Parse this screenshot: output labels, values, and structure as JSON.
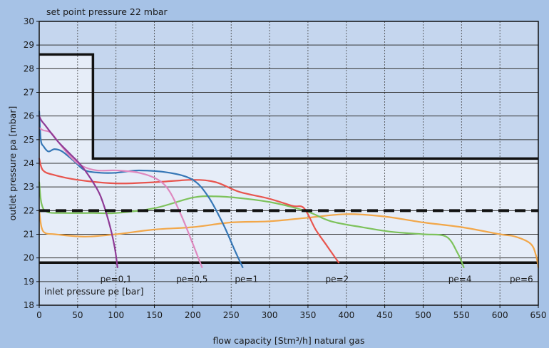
{
  "chart_data": {
    "type": "line",
    "title": "set point pressure 22 mbar",
    "xlabel": "flow capacity [Stm³/h] natural gas",
    "ylabel": "outlet pressure pa [mbar]",
    "inner_label": "inlet pressure pe [bar]",
    "xlim": [
      0,
      650
    ],
    "ylim": [
      18,
      30
    ],
    "xticks": [
      0,
      50,
      100,
      150,
      200,
      250,
      300,
      350,
      400,
      450,
      500,
      550,
      600,
      650
    ],
    "yticks": [
      18,
      19,
      20,
      21,
      22,
      23,
      24,
      25,
      26,
      27,
      28,
      29,
      30
    ],
    "grid": true,
    "setpoint": 22,
    "band": {
      "upper": [
        [
          0,
          28.6
        ],
        [
          70,
          28.6
        ],
        [
          70,
          24.2
        ],
        [
          650,
          24.2
        ]
      ],
      "lower": 19.8
    },
    "series": [
      {
        "name": "pe=0,1",
        "color": "#8e3a96",
        "label_at": [
          100,
          19.1
        ],
        "points": [
          [
            0,
            26.0
          ],
          [
            3,
            25.8
          ],
          [
            8,
            25.6
          ],
          [
            15,
            25.3
          ],
          [
            25,
            24.9
          ],
          [
            40,
            24.4
          ],
          [
            55,
            23.9
          ],
          [
            70,
            23.2
          ],
          [
            80,
            22.6
          ],
          [
            90,
            21.6
          ],
          [
            98,
            20.5
          ],
          [
            102,
            19.6
          ]
        ]
      },
      {
        "name": "pe=0,5",
        "color": "#de88bf",
        "label_at": [
          199,
          19.1
        ],
        "points": [
          [
            0,
            25.5
          ],
          [
            5,
            25.4
          ],
          [
            15,
            25.3
          ],
          [
            25,
            24.9
          ],
          [
            40,
            24.3
          ],
          [
            55,
            23.9
          ],
          [
            75,
            23.7
          ],
          [
            100,
            23.7
          ],
          [
            130,
            23.6
          ],
          [
            155,
            23.3
          ],
          [
            170,
            22.8
          ],
          [
            185,
            21.8
          ],
          [
            200,
            20.6
          ],
          [
            212,
            19.6
          ]
        ]
      },
      {
        "name": "pe=1",
        "color": "#3677b6",
        "label_at": [
          270,
          19.1
        ],
        "points": [
          [
            0,
            26.2
          ],
          [
            2,
            25.0
          ],
          [
            6,
            24.7
          ],
          [
            12,
            24.5
          ],
          [
            20,
            24.6
          ],
          [
            30,
            24.5
          ],
          [
            45,
            24.1
          ],
          [
            60,
            23.7
          ],
          [
            80,
            23.6
          ],
          [
            100,
            23.6
          ],
          [
            130,
            23.7
          ],
          [
            170,
            23.6
          ],
          [
            200,
            23.3
          ],
          [
            220,
            22.6
          ],
          [
            240,
            21.4
          ],
          [
            255,
            20.3
          ],
          [
            265,
            19.6
          ]
        ]
      },
      {
        "name": "pe=2",
        "color": "#e8554e",
        "label_at": [
          388,
          19.1
        ],
        "points": [
          [
            0,
            24.2
          ],
          [
            5,
            23.7
          ],
          [
            20,
            23.5
          ],
          [
            50,
            23.3
          ],
          [
            100,
            23.15
          ],
          [
            150,
            23.2
          ],
          [
            200,
            23.3
          ],
          [
            230,
            23.2
          ],
          [
            260,
            22.8
          ],
          [
            300,
            22.5
          ],
          [
            330,
            22.2
          ],
          [
            345,
            22.1
          ],
          [
            360,
            21.2
          ],
          [
            375,
            20.5
          ],
          [
            390,
            19.8
          ]
        ]
      },
      {
        "name": "pe=4",
        "color": "#7dc25b",
        "label_at": [
          548,
          19.1
        ],
        "points": [
          [
            0,
            23.2
          ],
          [
            3,
            22.3
          ],
          [
            10,
            21.95
          ],
          [
            30,
            21.9
          ],
          [
            70,
            21.9
          ],
          [
            100,
            21.9
          ],
          [
            150,
            22.1
          ],
          [
            200,
            22.55
          ],
          [
            230,
            22.6
          ],
          [
            270,
            22.5
          ],
          [
            310,
            22.3
          ],
          [
            350,
            21.95
          ],
          [
            380,
            21.55
          ],
          [
            420,
            21.3
          ],
          [
            460,
            21.1
          ],
          [
            500,
            21.0
          ],
          [
            530,
            20.9
          ],
          [
            545,
            20.2
          ],
          [
            553,
            19.6
          ]
        ]
      },
      {
        "name": "pe=6",
        "color": "#f2a749",
        "label_at": [
          628,
          19.1
        ],
        "points": [
          [
            0,
            22.0
          ],
          [
            3,
            21.3
          ],
          [
            8,
            21.05
          ],
          [
            20,
            21.0
          ],
          [
            60,
            20.9
          ],
          [
            100,
            21.0
          ],
          [
            150,
            21.2
          ],
          [
            200,
            21.3
          ],
          [
            250,
            21.5
          ],
          [
            300,
            21.55
          ],
          [
            350,
            21.7
          ],
          [
            400,
            21.85
          ],
          [
            450,
            21.75
          ],
          [
            500,
            21.5
          ],
          [
            550,
            21.3
          ],
          [
            600,
            21.0
          ],
          [
            620,
            20.9
          ],
          [
            640,
            20.6
          ],
          [
            647,
            20.1
          ],
          [
            650,
            19.6
          ]
        ]
      }
    ]
  }
}
